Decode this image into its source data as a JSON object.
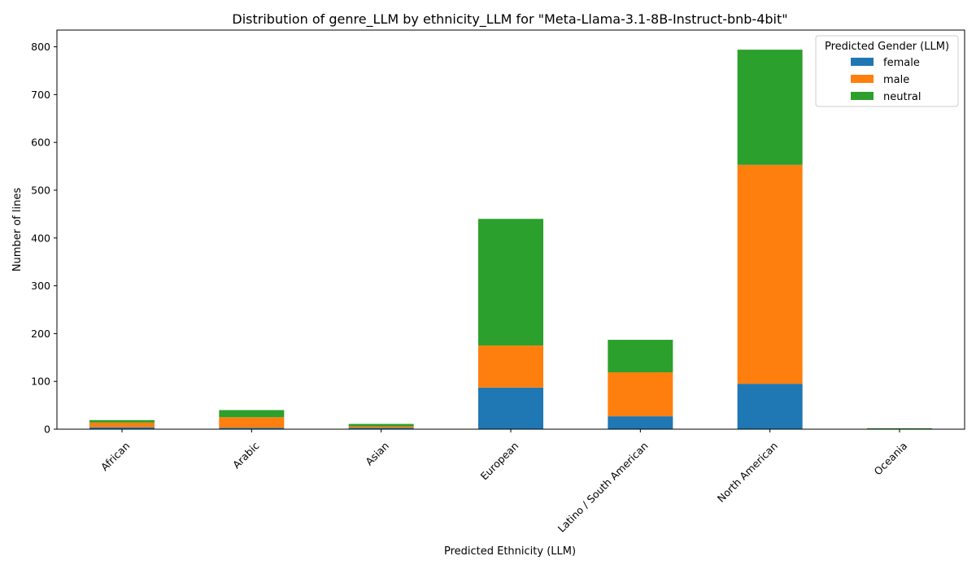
{
  "chart_data": {
    "type": "bar",
    "stacked": true,
    "title": "Distribution of genre_LLM by ethnicity_LLM for \"Meta-Llama-3.1-8B-Instruct-bnb-4bit\"",
    "xlabel": "Predicted Ethnicity (LLM)",
    "ylabel": "Number of lines",
    "categories": [
      "African",
      "Arabic",
      "Asian",
      "European",
      "Latino / South American",
      "North American",
      "Oceania"
    ],
    "series": [
      {
        "name": "female",
        "color": "#1f77b4",
        "values": [
          4,
          3,
          3,
          87,
          27,
          95,
          0
        ]
      },
      {
        "name": "male",
        "color": "#ff7f0e",
        "values": [
          10,
          22,
          3,
          88,
          92,
          458,
          0
        ]
      },
      {
        "name": "neutral",
        "color": "#2ca02c",
        "values": [
          5,
          15,
          5,
          265,
          68,
          241,
          2
        ]
      }
    ],
    "ylim": [
      0,
      835
    ],
    "yticks": [
      0,
      100,
      200,
      300,
      400,
      500,
      600,
      700,
      800
    ],
    "grid": false,
    "legend": {
      "title": "Predicted Gender (LLM)",
      "placement": "top-right"
    }
  }
}
